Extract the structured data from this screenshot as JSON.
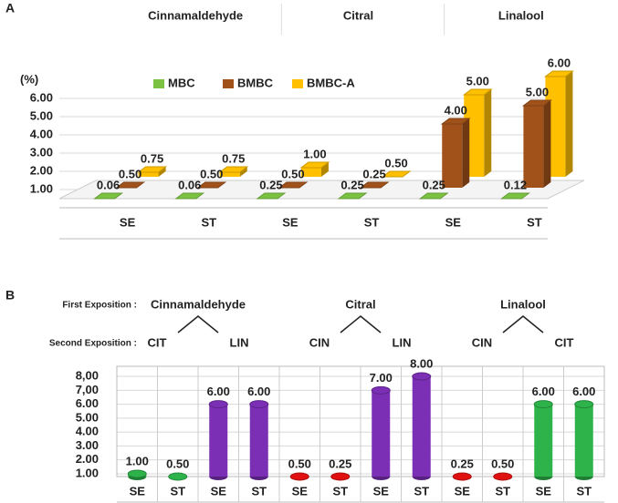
{
  "chart_data": [
    {
      "type": "bar3d",
      "panel": "A",
      "ylabel": "(%)",
      "groups": [
        "Cinnamaldehyde",
        "Citral",
        "Linalool"
      ],
      "categories": [
        "SE",
        "ST",
        "SE",
        "ST",
        "SE",
        "ST"
      ],
      "series": [
        {
          "name": "MBC",
          "color": "#7cc242",
          "values": [
            0.06,
            0.06,
            0.25,
            0.25,
            0.25,
            0.12
          ],
          "value_labels": [
            "0.06",
            "0.06",
            "0.25",
            "0.25",
            "0.25",
            "0.12"
          ]
        },
        {
          "name": "BMBC",
          "color": "#a0521a",
          "values": [
            0.5,
            0.5,
            0.5,
            0.25,
            4,
            5
          ],
          "value_labels": [
            "0.50",
            "0.50",
            "0.50",
            "0.25",
            "4.00",
            "5.00"
          ]
        },
        {
          "name": "BMBC-A",
          "color": "#ffc000",
          "values": [
            0.75,
            0.75,
            1,
            0.5,
            5,
            6
          ],
          "value_labels": [
            "0.75",
            "0.75",
            "1.00",
            "0.50",
            "5.00",
            "6.00"
          ]
        }
      ],
      "ylim": [
        0.5,
        6.5
      ],
      "yticks": [
        {
          "value": 1,
          "label": "1.00"
        },
        {
          "value": 2,
          "label": "2.00"
        },
        {
          "value": 3,
          "label": "3.00"
        },
        {
          "value": 4,
          "label": "4.00"
        },
        {
          "value": 5,
          "label": "5.00"
        },
        {
          "value": 6,
          "label": "6.00"
        }
      ],
      "grid": true
    },
    {
      "type": "cylinder",
      "panel": "B",
      "group_label": "First Exposition :",
      "subgroup_label": "Second Exposition :",
      "groups": [
        {
          "name": "Cinnamaldehyde",
          "second": [
            "CIT",
            "LIN"
          ]
        },
        {
          "name": "Citral",
          "second": [
            "CIN",
            "LIN"
          ]
        },
        {
          "name": "Linalool",
          "second": [
            "CIN",
            "CIT"
          ]
        }
      ],
      "categories": [
        "SE",
        "ST",
        "SE",
        "ST",
        "SE",
        "ST",
        "SE",
        "ST",
        "SE",
        "ST",
        "SE",
        "ST"
      ],
      "values": [
        1,
        0.5,
        6,
        6,
        0.5,
        0.25,
        7,
        8,
        0.25,
        0.5,
        6,
        6
      ],
      "value_labels": [
        "1.00",
        "0.50",
        "6.00",
        "6.00",
        "0.50",
        "0.25",
        "7.00",
        "8.00",
        "0.25",
        "0.50",
        "6.00",
        "6.00"
      ],
      "colors": [
        "#2db34a",
        "#2db34a",
        "#7b2fb5",
        "#7b2fb5",
        "#e01010",
        "#e01010",
        "#7b2fb5",
        "#7b2fb5",
        "#e01010",
        "#e01010",
        "#2db34a",
        "#2db34a"
      ],
      "ylim": [
        0.8,
        8.2
      ],
      "yticks": [
        {
          "value": 1,
          "label": "1.00"
        },
        {
          "value": 2,
          "label": "2.00"
        },
        {
          "value": 3,
          "label": "3.00"
        },
        {
          "value": 4,
          "label": "4.00"
        },
        {
          "value": 5,
          "label": "5.00"
        },
        {
          "value": 6,
          "label": "6.00"
        },
        {
          "value": 7,
          "label": "7,00"
        },
        {
          "value": 8,
          "label": "8,00"
        }
      ],
      "grid": true
    }
  ]
}
